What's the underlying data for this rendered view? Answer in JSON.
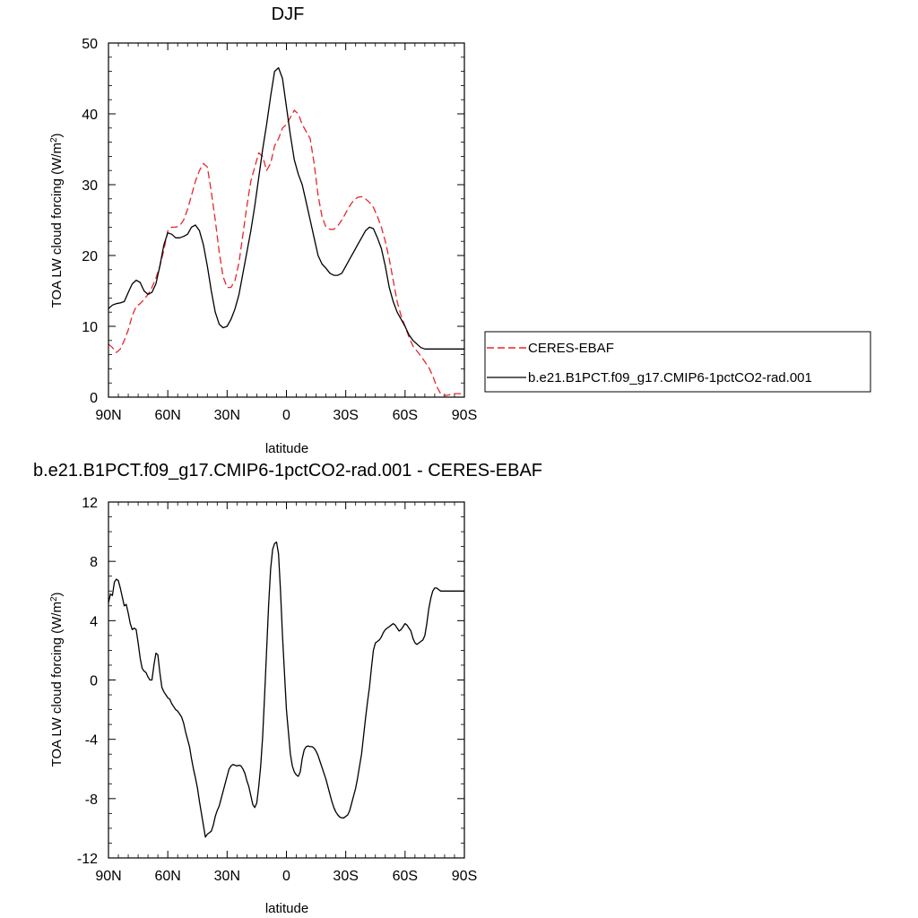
{
  "chart_data": [
    {
      "type": "line",
      "title": "DJF",
      "xlabel": "latitude",
      "ylabel": "TOA LW cloud forcing (W/m²)",
      "xlim": [
        90,
        -90
      ],
      "ylim": [
        0,
        50
      ],
      "x_ticks": [
        90,
        60,
        30,
        0,
        -30,
        -60,
        -90
      ],
      "x_tick_labels": [
        "90N",
        "60N",
        "30N",
        "0",
        "30S",
        "60S",
        "90S"
      ],
      "y_ticks": [
        0,
        10,
        20,
        30,
        40,
        50
      ],
      "y_tick_labels": [
        "0",
        "10",
        "20",
        "30",
        "40",
        "50"
      ],
      "legend_position": "outside-right",
      "series": [
        {
          "name": "CERES-EBAF",
          "color": "#e8252d",
          "dash": "dashed",
          "x": [
            90,
            88,
            86,
            84,
            82,
            80,
            78,
            76,
            74,
            72,
            70,
            68,
            66,
            64,
            62,
            60,
            58,
            56,
            54,
            52,
            50,
            48,
            46,
            44,
            42,
            40,
            38,
            36,
            34,
            32,
            30,
            28,
            26,
            24,
            22,
            20,
            18,
            16,
            14,
            12,
            10,
            8,
            6,
            4,
            2,
            0,
            -2,
            -4,
            -6,
            -8,
            -10,
            -12,
            -14,
            -16,
            -18,
            -20,
            -22,
            -24,
            -26,
            -28,
            -30,
            -32,
            -34,
            -36,
            -38,
            -40,
            -42,
            -44,
            -46,
            -48,
            -50,
            -52,
            -54,
            -56,
            -58,
            -60,
            -62,
            -64,
            -66,
            -68,
            -70,
            -72,
            -74,
            -76,
            -78,
            -80,
            -82,
            -84,
            -86,
            -88,
            -90
          ],
          "y": [
            7.5,
            7.0,
            6.3,
            6.8,
            8.0,
            9.5,
            11.5,
            12.8,
            13.2,
            13.8,
            14.5,
            15.5,
            16.8,
            18.5,
            20.8,
            23.5,
            24.0,
            24.0,
            24.2,
            25.0,
            26.5,
            28.5,
            30.5,
            32.0,
            33.0,
            32.5,
            29.0,
            25.0,
            20.5,
            17.0,
            15.5,
            15.5,
            16.5,
            19.0,
            23.0,
            27.0,
            30.5,
            32.5,
            34.5,
            34.0,
            32.0,
            33.0,
            35.5,
            36.5,
            38.0,
            38.5,
            39.5,
            40.5,
            40.0,
            38.5,
            37.5,
            36.5,
            33.0,
            28.5,
            25.5,
            24.0,
            23.7,
            23.7,
            24.2,
            25.0,
            26.0,
            27.0,
            27.8,
            28.2,
            28.3,
            28.0,
            27.5,
            26.8,
            25.5,
            24.0,
            22.0,
            19.5,
            16.5,
            13.5,
            11.5,
            10.0,
            8.5,
            7.2,
            6.5,
            5.8,
            5.0,
            4.2,
            3.0,
            1.5,
            0.5,
            0.2,
            0.3,
            0.5,
            0.5,
            0.5,
            0.5
          ]
        },
        {
          "name": "b.e21.B1PCT.f09_g17.CMIP6-1pctCO2-rad.001",
          "color": "#000000",
          "dash": "solid",
          "x": [
            90,
            88,
            86,
            84,
            82,
            80,
            78,
            76,
            74,
            72,
            70,
            68,
            66,
            64,
            62,
            60,
            58,
            56,
            54,
            52,
            50,
            48,
            46,
            44,
            42,
            40,
            38,
            36,
            34,
            32,
            30,
            28,
            26,
            24,
            22,
            20,
            18,
            16,
            14,
            12,
            10,
            8,
            6,
            4,
            2,
            0,
            -2,
            -4,
            -6,
            -8,
            -10,
            -12,
            -14,
            -16,
            -18,
            -20,
            -22,
            -24,
            -26,
            -28,
            -30,
            -32,
            -34,
            -36,
            -38,
            -40,
            -42,
            -44,
            -46,
            -48,
            -50,
            -52,
            -54,
            -56,
            -58,
            -60,
            -62,
            -64,
            -66,
            -68,
            -70,
            -72,
            -74,
            -76,
            -78,
            -80,
            -82,
            -84,
            -86,
            -88,
            -90
          ],
          "y": [
            12.5,
            13.0,
            13.2,
            13.3,
            13.5,
            14.8,
            16.0,
            16.5,
            16.2,
            15.0,
            14.5,
            14.8,
            16.0,
            18.5,
            21.5,
            23.2,
            23.0,
            22.5,
            22.5,
            22.7,
            23.0,
            24.0,
            24.3,
            23.5,
            21.5,
            18.5,
            15.0,
            12.0,
            10.3,
            9.8,
            10.0,
            11.0,
            12.5,
            14.5,
            17.5,
            20.5,
            23.5,
            27.0,
            31.0,
            35.0,
            38.5,
            42.5,
            46.0,
            46.5,
            45.0,
            41.0,
            37.0,
            33.5,
            31.5,
            30.0,
            27.5,
            25.0,
            22.5,
            20.0,
            18.8,
            18.2,
            17.5,
            17.2,
            17.2,
            17.5,
            18.5,
            19.5,
            20.5,
            21.5,
            22.5,
            23.5,
            24.0,
            23.8,
            22.5,
            21.0,
            18.5,
            15.5,
            13.5,
            12.0,
            11.0,
            10.0,
            8.8,
            8.0,
            7.5,
            7.0,
            6.8,
            6.8,
            6.8,
            6.8,
            6.8,
            6.8,
            6.8,
            6.8,
            6.8,
            6.8,
            6.8
          ]
        }
      ]
    },
    {
      "type": "line",
      "title": "b.e21.B1PCT.f09_g17.CMIP6-1pctCO2-rad.001 - CERES-EBAF",
      "xlabel": "latitude",
      "ylabel": "TOA LW cloud forcing (W/m²)",
      "xlim": [
        90,
        -90
      ],
      "ylim": [
        -12,
        12
      ],
      "x_ticks": [
        90,
        60,
        30,
        0,
        -30,
        -60,
        -90
      ],
      "x_tick_labels": [
        "90N",
        "60N",
        "30N",
        "0",
        "30S",
        "60S",
        "90S"
      ],
      "y_ticks": [
        12,
        8,
        4,
        0,
        -4,
        -8,
        -12
      ],
      "y_tick_labels": [
        "12",
        "8",
        "4",
        "0",
        "-4",
        "-8",
        "-12"
      ],
      "series": [
        {
          "color": "#000000",
          "dash": "solid",
          "x": [
            90,
            89,
            88,
            87,
            86,
            85,
            84,
            83,
            82,
            81,
            80,
            79,
            78,
            77,
            76,
            75,
            74,
            73,
            72,
            71,
            70,
            69,
            68,
            67,
            66,
            65,
            64,
            63,
            62,
            61,
            60,
            59,
            58,
            57,
            56,
            55,
            54,
            53,
            52,
            51,
            50,
            49,
            48,
            47,
            46,
            45,
            44,
            43,
            42,
            41,
            40,
            39,
            38,
            37,
            36,
            35,
            34,
            33,
            32,
            31,
            30,
            29,
            28,
            27,
            26,
            25,
            24,
            23,
            22,
            21,
            20,
            19,
            18,
            17,
            16,
            15,
            14,
            13,
            12,
            11,
            10,
            9,
            8,
            7,
            6,
            5,
            4,
            3,
            2,
            1,
            0,
            -1,
            -2,
            -3,
            -4,
            -5,
            -6,
            -7,
            -8,
            -9,
            -10,
            -11,
            -12,
            -13,
            -14,
            -15,
            -16,
            -17,
            -18,
            -19,
            -20,
            -21,
            -22,
            -23,
            -24,
            -25,
            -26,
            -27,
            -28,
            -29,
            -30,
            -31,
            -32,
            -33,
            -34,
            -35,
            -36,
            -37,
            -38,
            -39,
            -40,
            -41,
            -42,
            -43,
            -44,
            -45,
            -46,
            -47,
            -48,
            -49,
            -50,
            -51,
            -52,
            -53,
            -54,
            -55,
            -56,
            -57,
            -58,
            -59,
            -60,
            -61,
            -62,
            -63,
            -64,
            -65,
            -66,
            -67,
            -68,
            -69,
            -70,
            -71,
            -72,
            -73,
            -74,
            -75,
            -76,
            -77,
            -78,
            -79,
            -80,
            -81,
            -82,
            -83,
            -84,
            -85,
            -86,
            -87,
            -88,
            -89,
            -90
          ],
          "y": [
            5.2,
            5.8,
            5.7,
            6.6,
            6.8,
            6.7,
            6.2,
            5.6,
            5.0,
            5.1,
            4.5,
            3.8,
            3.4,
            3.5,
            3.4,
            2.5,
            1.5,
            0.8,
            0.6,
            0.5,
            0.2,
            0.0,
            0.0,
            1.0,
            1.8,
            1.7,
            0.5,
            -0.5,
            -0.8,
            -1.0,
            -1.2,
            -1.3,
            -1.6,
            -1.8,
            -2.0,
            -2.1,
            -2.3,
            -2.5,
            -2.9,
            -3.5,
            -4.0,
            -4.5,
            -5.3,
            -6.0,
            -6.6,
            -7.3,
            -8.2,
            -9.0,
            -9.8,
            -10.6,
            -10.4,
            -10.3,
            -10.2,
            -9.8,
            -9.2,
            -8.8,
            -8.5,
            -8.0,
            -7.5,
            -7.0,
            -6.5,
            -6.0,
            -5.8,
            -5.7,
            -5.75,
            -5.8,
            -5.75,
            -5.8,
            -6.0,
            -6.3,
            -6.8,
            -7.2,
            -7.8,
            -8.4,
            -8.6,
            -8.3,
            -7.2,
            -5.8,
            -3.8,
            -1.0,
            2.0,
            5.0,
            7.5,
            8.8,
            9.2,
            9.3,
            8.5,
            6.0,
            3.0,
            0.5,
            -2.0,
            -3.5,
            -5.0,
            -5.8,
            -6.2,
            -6.4,
            -6.5,
            -6.2,
            -5.3,
            -4.7,
            -4.5,
            -4.45,
            -4.5,
            -4.5,
            -4.6,
            -4.8,
            -5.1,
            -5.5,
            -5.9,
            -6.3,
            -6.7,
            -7.2,
            -7.7,
            -8.2,
            -8.6,
            -8.9,
            -9.1,
            -9.25,
            -9.3,
            -9.3,
            -9.2,
            -9.1,
            -8.8,
            -8.3,
            -7.8,
            -7.3,
            -6.6,
            -5.8,
            -5.0,
            -3.8,
            -2.6,
            -1.5,
            -0.5,
            0.8,
            2.0,
            2.5,
            2.6,
            2.7,
            2.9,
            3.2,
            3.4,
            3.5,
            3.6,
            3.7,
            3.8,
            3.7,
            3.5,
            3.3,
            3.4,
            3.6,
            3.8,
            3.7,
            3.5,
            3.3,
            2.8,
            2.5,
            2.4,
            2.5,
            2.6,
            2.7,
            3.0,
            3.8,
            4.8,
            5.5,
            6.0,
            6.2,
            6.2,
            6.1,
            6.0,
            6.0,
            6.0,
            6.0,
            6.0,
            6.0,
            6.0,
            6.0,
            6.0,
            6.0,
            6.0,
            6.0,
            6.0
          ]
        }
      ]
    }
  ]
}
